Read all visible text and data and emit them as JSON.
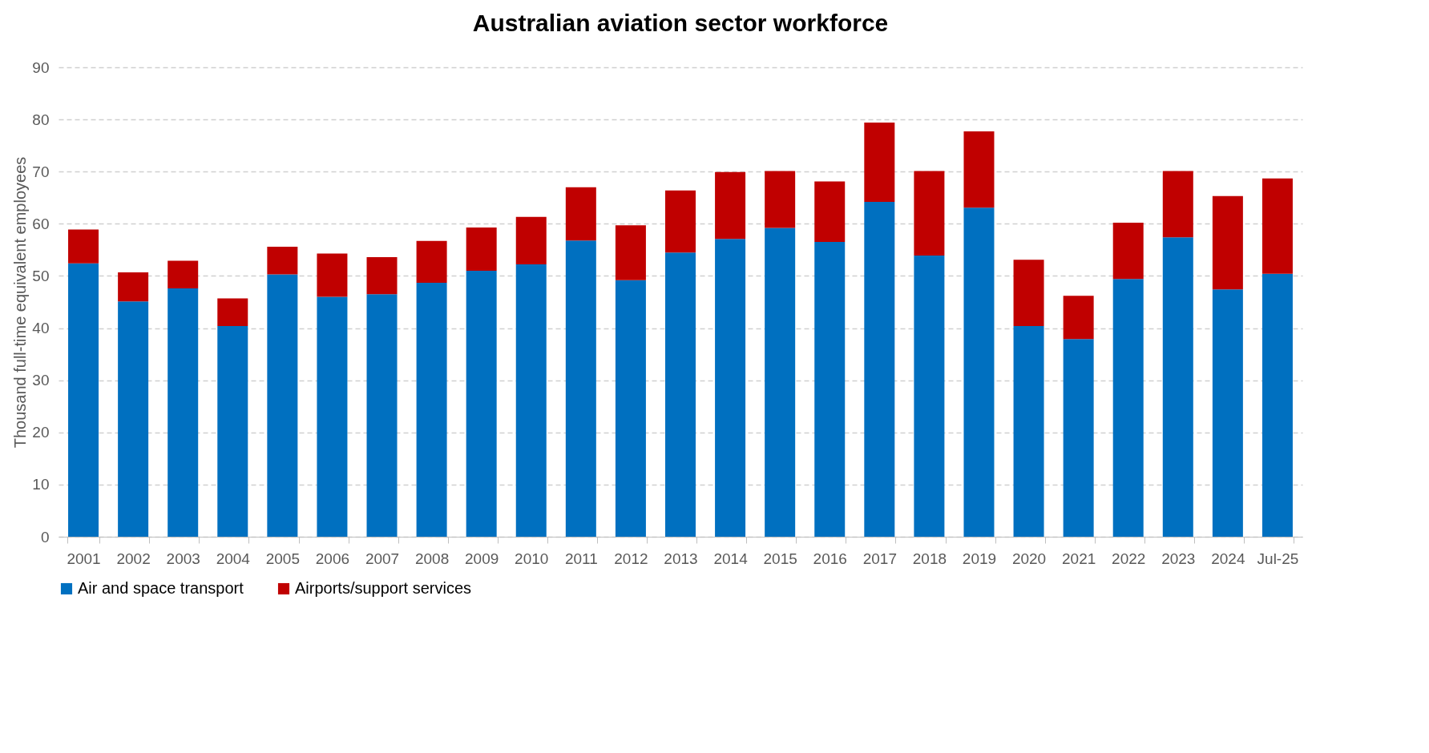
{
  "chart_data": {
    "type": "bar",
    "title": "Australian aviation sector workforce",
    "ylabel": "Thousand full-time equivalent employees",
    "categories": [
      "2001",
      "2002",
      "2003",
      "2004",
      "2005",
      "2006",
      "2007",
      "2008",
      "2009",
      "2010",
      "2011",
      "2012",
      "2013",
      "2014",
      "2015",
      "2016",
      "2017",
      "2018",
      "2019",
      "2020",
      "2021",
      "2022",
      "2023",
      "2024",
      "Jul-25"
    ],
    "stacked": true,
    "series": [
      {
        "name": "Air and space transport",
        "color": "#0070c0",
        "values": [
          52.4,
          45.1,
          47.6,
          40.4,
          50.3,
          46.0,
          46.5,
          48.7,
          51.0,
          52.2,
          56.8,
          49.2,
          54.5,
          57.1,
          59.2,
          56.5,
          64.2,
          53.9,
          63.1,
          40.4,
          37.9,
          49.4,
          57.4,
          47.4,
          50.4
        ]
      },
      {
        "name": "Airports/support services",
        "color": "#c00000",
        "values": [
          6.5,
          5.6,
          5.3,
          5.3,
          5.3,
          8.3,
          7.1,
          8.0,
          8.3,
          9.1,
          10.2,
          10.5,
          11.9,
          12.8,
          10.9,
          11.6,
          15.2,
          16.2,
          14.6,
          12.7,
          8.3,
          10.8,
          12.7,
          17.9,
          18.3
        ]
      }
    ],
    "ylim": [
      0,
      90
    ],
    "yticks": [
      0,
      10,
      20,
      30,
      40,
      50,
      60,
      70,
      80,
      90
    ],
    "grid": "y",
    "legend": "bottom"
  }
}
